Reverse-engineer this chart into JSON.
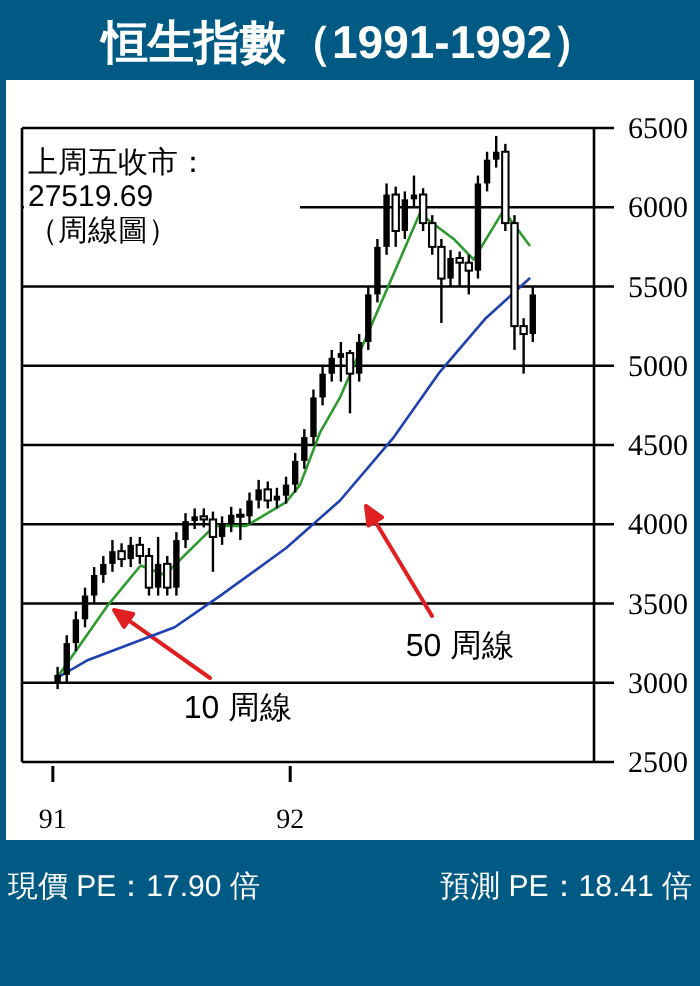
{
  "chart_data": {
    "type": "candlestick",
    "title": "恒生指數（1991-1992）",
    "x": [
      1991.02,
      1991.0585,
      1991.097,
      1991.1355,
      1991.174,
      1991.2125,
      1991.251,
      1991.2895,
      1991.328,
      1991.3665,
      1991.405,
      1991.4435,
      1991.482,
      1991.5205,
      1991.559,
      1991.5975,
      1991.636,
      1991.6745,
      1991.713,
      1991.7515,
      1991.79,
      1991.8285,
      1991.867,
      1991.9055,
      1991.944,
      1991.9825,
      1992.021,
      1992.0595,
      1992.098,
      1992.1365,
      1992.175,
      1992.2135,
      1992.252,
      1992.2905,
      1992.329,
      1992.3675,
      1992.406,
      1992.4445,
      1992.483,
      1992.5215,
      1992.56,
      1992.5985,
      1992.637,
      1992.6755,
      1992.714,
      1992.7525,
      1992.791,
      1992.8295,
      1992.868,
      1992.9065,
      1992.945,
      1992.9835,
      1993.022
    ],
    "ohlc": [
      [
        3000,
        3100,
        2960,
        3050
      ],
      [
        3050,
        3300,
        3000,
        3250
      ],
      [
        3250,
        3450,
        3200,
        3400
      ],
      [
        3400,
        3600,
        3350,
        3550
      ],
      [
        3550,
        3730,
        3500,
        3680
      ],
      [
        3680,
        3800,
        3630,
        3750
      ],
      [
        3750,
        3900,
        3700,
        3830
      ],
      [
        3830,
        3880,
        3730,
        3780
      ],
      [
        3780,
        3920,
        3730,
        3870
      ],
      [
        3870,
        3920,
        3750,
        3800
      ],
      [
        3800,
        3850,
        3550,
        3600
      ],
      [
        3600,
        3920,
        3550,
        3750
      ],
      [
        3750,
        3800,
        3550,
        3600
      ],
      [
        3600,
        3950,
        3550,
        3900
      ],
      [
        3900,
        4070,
        3850,
        4020
      ],
      [
        4020,
        4100,
        3970,
        4050
      ],
      [
        4050,
        4100,
        3980,
        4030
      ],
      [
        4030,
        4080,
        3700,
        3920
      ],
      [
        3920,
        4050,
        3870,
        4000
      ],
      [
        4000,
        4110,
        3950,
        4060
      ],
      [
        4060,
        4100,
        3900,
        4050
      ],
      [
        4050,
        4200,
        4000,
        4150
      ],
      [
        4150,
        4280,
        4100,
        4220
      ],
      [
        4220,
        4270,
        4100,
        4150
      ],
      [
        4150,
        4230,
        4100,
        4180
      ],
      [
        4180,
        4300,
        4130,
        4250
      ],
      [
        4250,
        4450,
        4200,
        4400
      ],
      [
        4400,
        4600,
        4350,
        4550
      ],
      [
        4550,
        4850,
        4500,
        4800
      ],
      [
        4800,
        5000,
        4750,
        4950
      ],
      [
        4950,
        5100,
        4900,
        5050
      ],
      [
        5050,
        5150,
        4900,
        5080
      ],
      [
        5080,
        5100,
        4700,
        4950
      ],
      [
        4950,
        5200,
        4900,
        5150
      ],
      [
        5150,
        5500,
        5100,
        5450
      ],
      [
        5450,
        5800,
        5400,
        5750
      ],
      [
        5750,
        6150,
        5700,
        6080
      ],
      [
        6080,
        6130,
        5750,
        5850
      ],
      [
        5850,
        6100,
        5800,
        6050
      ],
      [
        6050,
        6200,
        6000,
        6080
      ],
      [
        6080,
        6120,
        5850,
        5900
      ],
      [
        5900,
        5950,
        5700,
        5750
      ],
      [
        5750,
        5800,
        5270,
        5550
      ],
      [
        5550,
        5730,
        5500,
        5680
      ],
      [
        5680,
        5720,
        5500,
        5650
      ],
      [
        5650,
        5700,
        5450,
        5600
      ],
      [
        5600,
        6200,
        5550,
        6150
      ],
      [
        6150,
        6350,
        6100,
        6300
      ],
      [
        6300,
        6450,
        6250,
        6350
      ],
      [
        6350,
        6400,
        5850,
        5900
      ],
      [
        5900,
        5950,
        5100,
        5250
      ],
      [
        5250,
        5300,
        4950,
        5200
      ],
      [
        5200,
        5500,
        5150,
        5450
      ]
    ],
    "series": [
      {
        "type": "line",
        "color": "#2e9a2e",
        "x": [
          1991.017,
          1991.227,
          1991.37,
          1991.471,
          1991.681,
          1991.815,
          1991.983,
          1992.042,
          1992.126,
          1992.21,
          1992.378,
          1992.546,
          1992.689,
          1992.773,
          1992.899,
          1993.008
        ],
        "values": [
          3030,
          3480,
          3740,
          3680,
          3990,
          3990,
          4140,
          4250,
          4580,
          4800,
          5380,
          5960,
          5800,
          5670,
          5980,
          5760
        ]
      },
      {
        "type": "line",
        "color": "#2040b0",
        "x": [
          1991.017,
          1991.143,
          1991.513,
          1991.706,
          1991.983,
          1992.21,
          1992.437,
          1992.63,
          1992.824,
          1993.008
        ],
        "values": [
          3030,
          3140,
          3350,
          3550,
          3850,
          4150,
          4550,
          4960,
          5300,
          5550
        ]
      }
    ],
    "xlim": [
      1990.87,
      1993.28
    ],
    "xticks": [
      {
        "value": 1991,
        "label": "91"
      },
      {
        "value": 1992,
        "label": "92"
      }
    ],
    "ylim": [
      2500,
      6500
    ],
    "yticks": [
      2500,
      3000,
      3500,
      4000,
      4500,
      5000,
      5500,
      6000,
      6500
    ],
    "grid": "y",
    "annotations": [
      "上周五收市：\n27519.69\n（周線圖）",
      "10 周線",
      "50 周線",
      "現價 PE：17.90 倍",
      "預測 PE：18.41 倍"
    ]
  }
}
